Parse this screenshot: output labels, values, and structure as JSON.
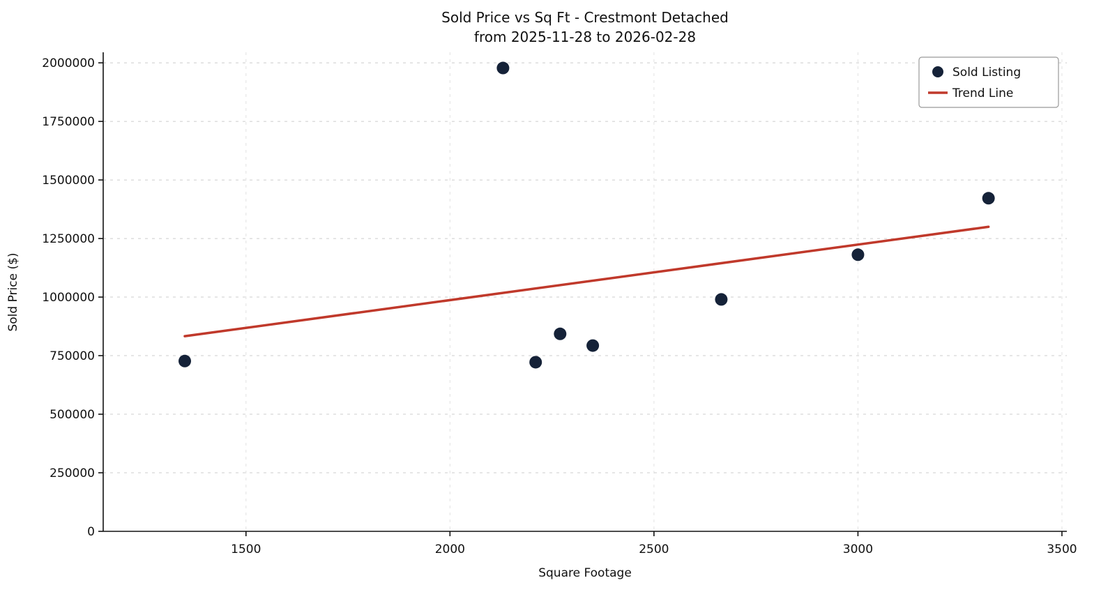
{
  "chart_data": {
    "type": "scatter",
    "title": "Sold Price vs Sq Ft - Crestmont Detached",
    "subtitle": "from 2025-11-28 to 2026-02-28",
    "xlabel": "Square Footage",
    "ylabel": "Sold Price ($)",
    "xlim": [
      1150,
      3512
    ],
    "ylim": [
      0,
      2045000
    ],
    "xticks": [
      1500,
      2000,
      2500,
      3000,
      3500
    ],
    "yticks": [
      0,
      250000,
      500000,
      750000,
      1000000,
      1250000,
      1500000,
      1750000,
      2000000
    ],
    "grid": true,
    "grid_style": "dashed",
    "legend_position": "upper right",
    "colors": {
      "point": "#152238",
      "trend": "#c0392b",
      "spine": "#111111",
      "grid": "#cccccc"
    },
    "series": [
      {
        "name": "Sold Listing",
        "kind": "scatter",
        "color": "#152238",
        "points": [
          {
            "x": 1350,
            "y": 727000
          },
          {
            "x": 2130,
            "y": 1978000
          },
          {
            "x": 2210,
            "y": 722000
          },
          {
            "x": 2270,
            "y": 843000
          },
          {
            "x": 2350,
            "y": 793000
          },
          {
            "x": 2665,
            "y": 990000
          },
          {
            "x": 3000,
            "y": 1181000
          },
          {
            "x": 3320,
            "y": 1422000
          }
        ]
      },
      {
        "name": "Trend Line",
        "kind": "line",
        "color": "#c0392b",
        "points": [
          {
            "x": 1350,
            "y": 833000
          },
          {
            "x": 3320,
            "y": 1300000
          }
        ]
      }
    ]
  }
}
